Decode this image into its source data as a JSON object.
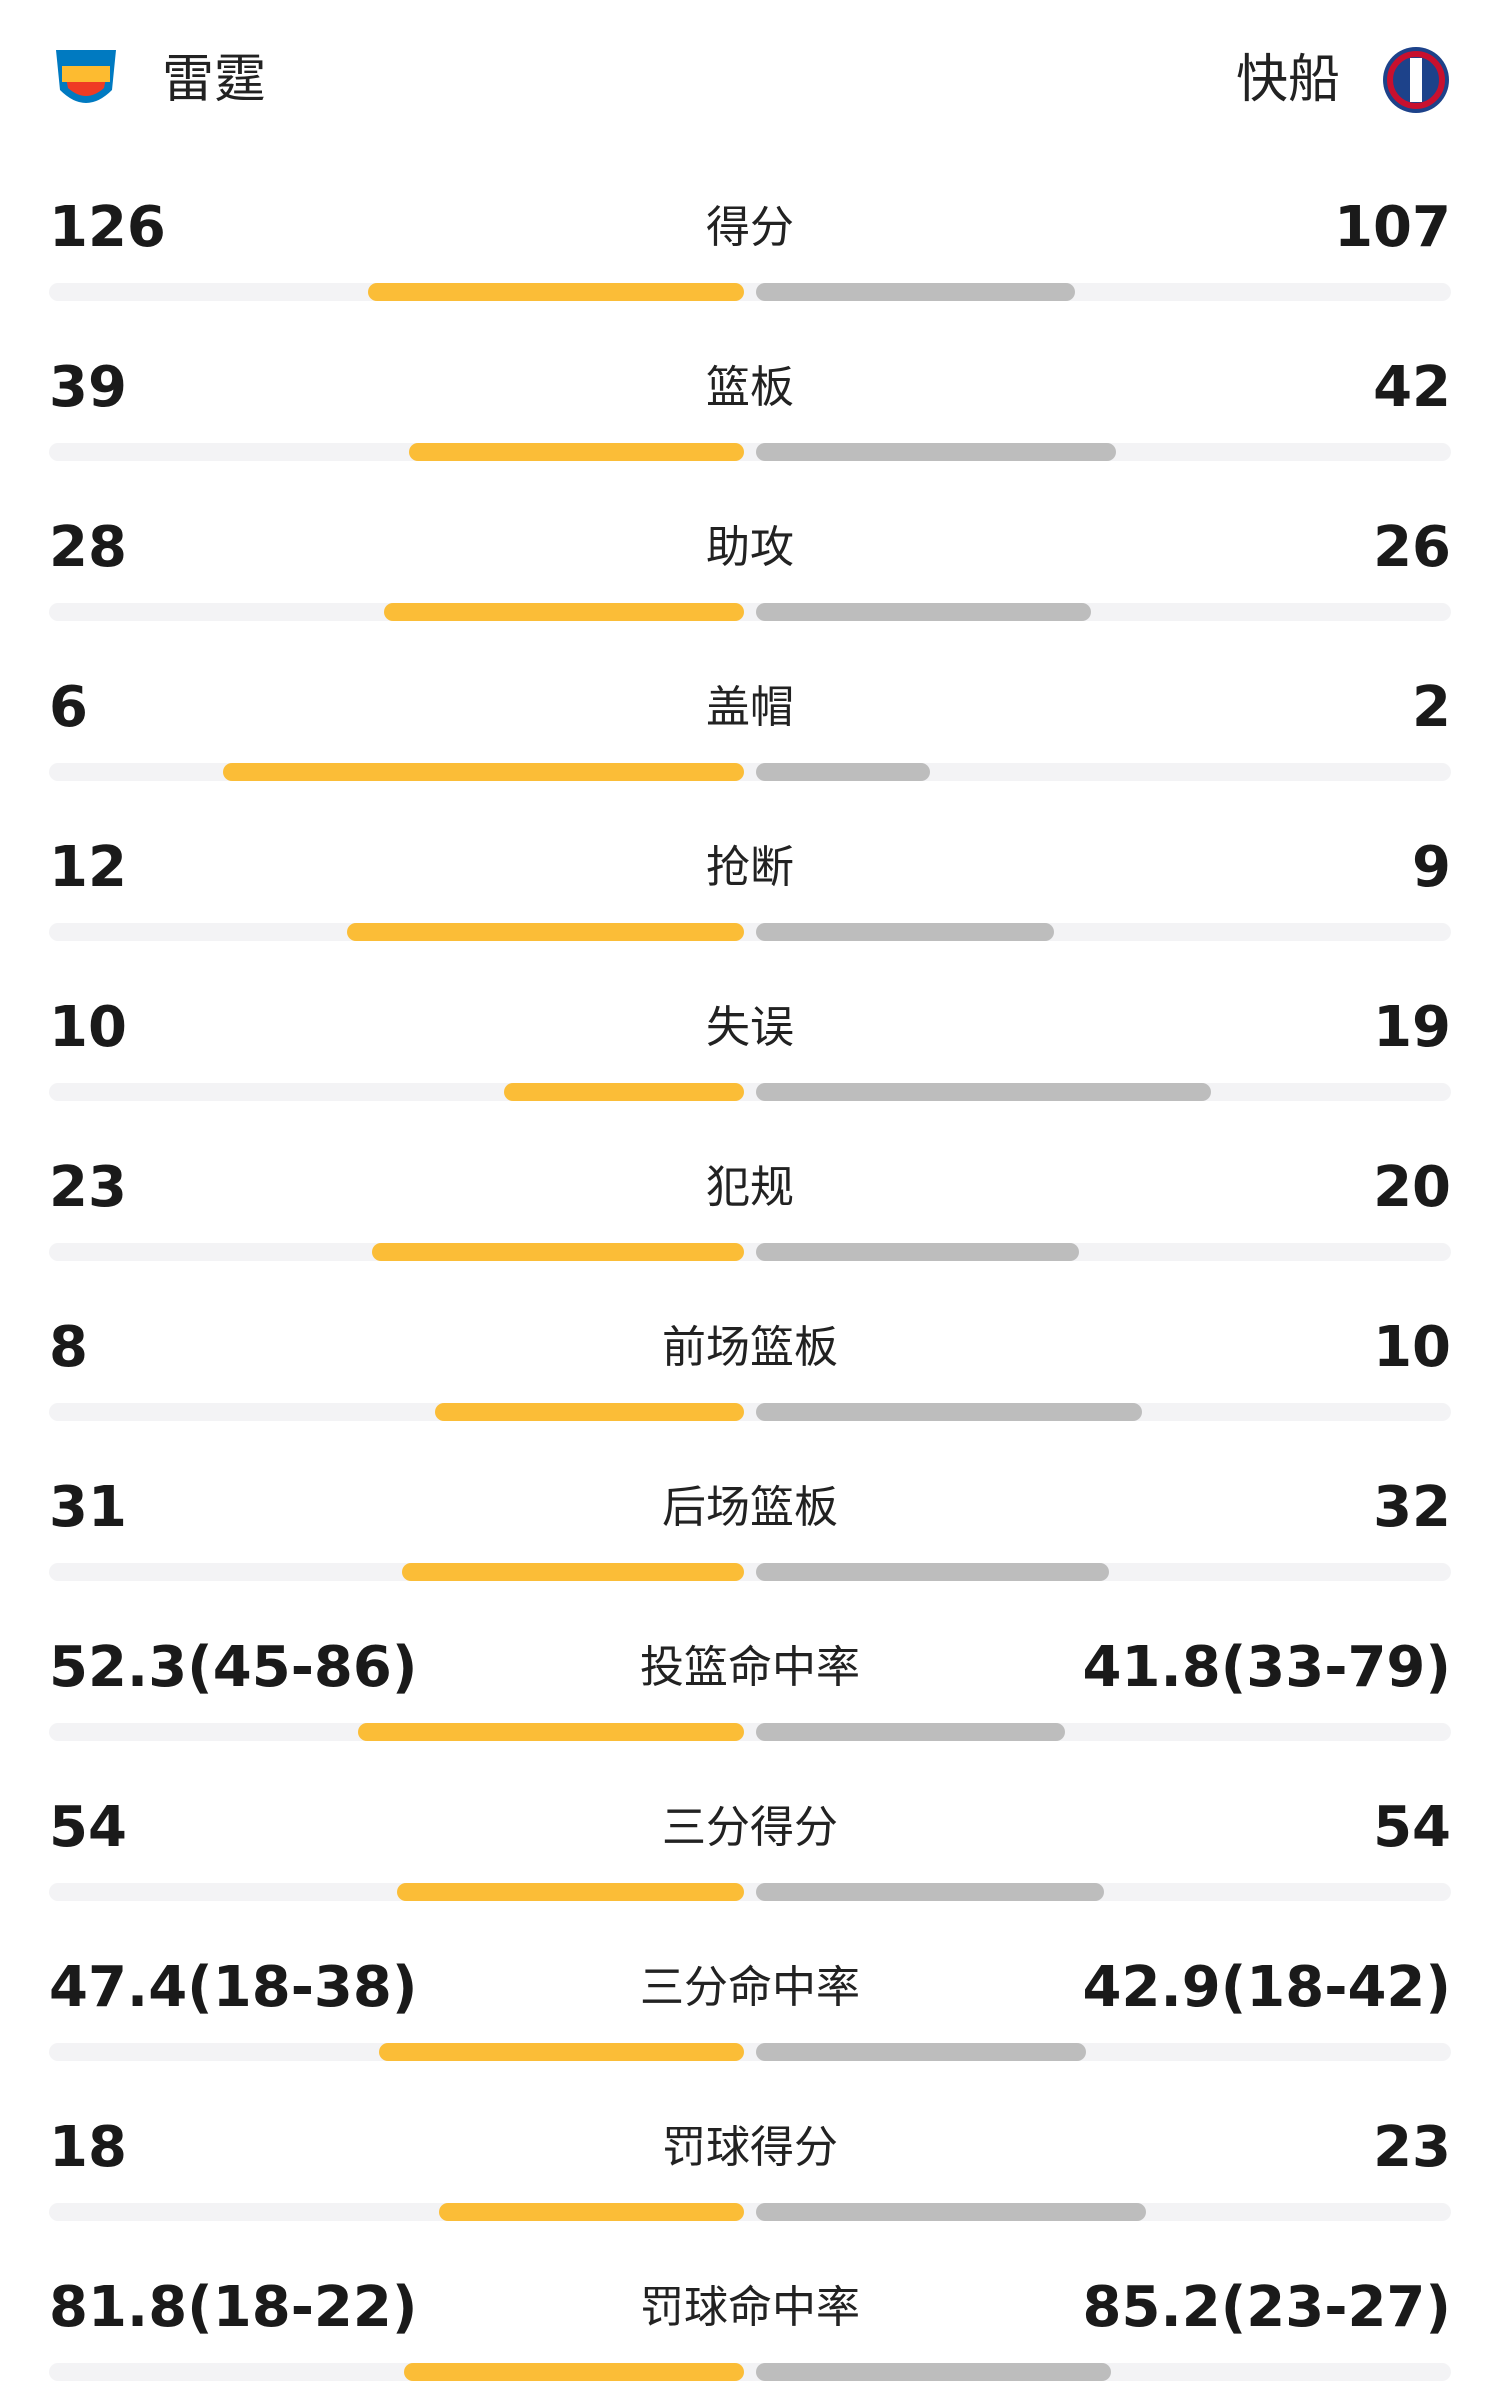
{
  "header": {
    "home_team": "雷霆",
    "away_team": "快船"
  },
  "stats": [
    {
      "label": "得分",
      "home": 126,
      "away": 107
    },
    {
      "label": "篮板",
      "home": 39,
      "away": 42
    },
    {
      "label": "助攻",
      "home": 28,
      "away": 26
    },
    {
      "label": "盖帽",
      "home": 6,
      "away": 2
    },
    {
      "label": "抢断",
      "home": 12,
      "away": 9
    },
    {
      "label": "失误",
      "home": 10,
      "away": 19
    },
    {
      "label": "犯规",
      "home": 23,
      "away": 20
    },
    {
      "label": "前场篮板",
      "home": 8,
      "away": 10
    },
    {
      "label": "后场篮板",
      "home": 31,
      "away": 32
    },
    {
      "label": "投篮命中率",
      "home": 52.3,
      "home_label": "52.3(45-86)",
      "away": 41.8,
      "away_label": "41.8(33-79)"
    },
    {
      "label": "三分得分",
      "home": 54,
      "away": 54
    },
    {
      "label": "三分命中率",
      "home": 47.4,
      "home_label": "47.4(18-38)",
      "away": 42.9,
      "away_label": "42.9(18-42)"
    },
    {
      "label": "罚球得分",
      "home": 18,
      "away": 23
    },
    {
      "label": "罚球命中率",
      "home": 81.8,
      "home_label": "81.8(18-22)",
      "away": 85.2,
      "away_label": "85.2(23-27)"
    }
  ]
}
